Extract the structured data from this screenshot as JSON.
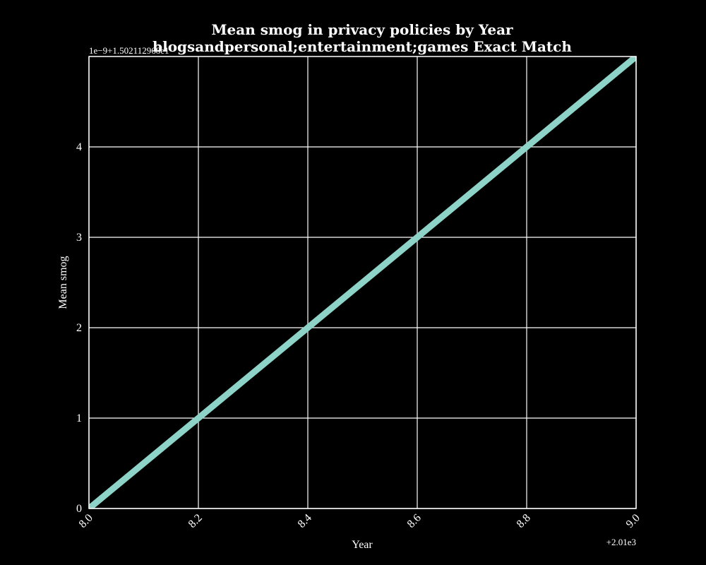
{
  "chart_data": {
    "type": "line",
    "title": "Mean smog in privacy policies by Year",
    "subtitle": "blogsandpersonal;entertainment;games Exact Match",
    "xlabel": "Year",
    "ylabel": "Mean smog",
    "x_offset_label": "+2.01e3",
    "y_offset_label": "1e−9+1.502112968e1",
    "x_ticks": [
      "8.0",
      "8.2",
      "8.4",
      "8.6",
      "8.8",
      "9.0"
    ],
    "y_ticks": [
      "0",
      "1",
      "2",
      "3",
      "4"
    ],
    "xlim": [
      8.0,
      9.0
    ],
    "ylim": [
      0,
      5
    ],
    "grid": true,
    "series": [
      {
        "x": [
          8.0,
          9.0
        ],
        "y": [
          0,
          5
        ],
        "color": "#8dd3c7"
      }
    ]
  },
  "colors": {
    "background": "#000000",
    "foreground": "#ffffff",
    "line": "#8dd3c7"
  }
}
